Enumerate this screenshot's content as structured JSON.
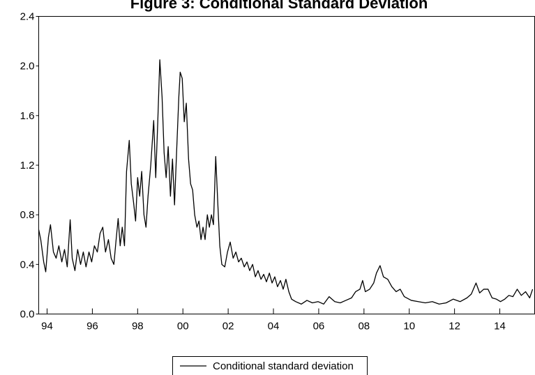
{
  "chart_data": {
    "type": "line",
    "title": "Figure 3: Conditional Standard Deviation",
    "x": [
      1993.63,
      1993.72,
      1993.85,
      1993.94,
      1994.06,
      1994.15,
      1994.28,
      1994.4,
      1994.52,
      1994.65,
      1994.77,
      1994.89,
      1995.02,
      1995.11,
      1995.23,
      1995.35,
      1995.48,
      1995.6,
      1995.72,
      1995.85,
      1995.97,
      1996.09,
      1996.22,
      1996.34,
      1996.46,
      1996.58,
      1996.71,
      1996.83,
      1996.95,
      1997.05,
      1997.14,
      1997.23,
      1997.32,
      1997.42,
      1997.51,
      1997.63,
      1997.72,
      1997.82,
      1997.91,
      1998.0,
      1998.09,
      1998.18,
      1998.28,
      1998.37,
      1998.46,
      1998.58,
      1998.71,
      1998.8,
      1998.89,
      1998.98,
      1999.08,
      1999.17,
      1999.26,
      1999.35,
      1999.45,
      1999.54,
      1999.63,
      1999.72,
      1999.82,
      1999.88,
      1999.97,
      2000.06,
      2000.15,
      2000.25,
      2000.34,
      2000.43,
      2000.52,
      2000.62,
      2000.71,
      2000.8,
      2000.89,
      2000.98,
      2001.08,
      2001.17,
      2001.26,
      2001.35,
      2001.45,
      2001.54,
      2001.63,
      2001.72,
      2001.85,
      2001.97,
      2002.09,
      2002.22,
      2002.34,
      2002.46,
      2002.58,
      2002.71,
      2002.83,
      2002.95,
      2003.08,
      2003.2,
      2003.32,
      2003.45,
      2003.57,
      2003.69,
      2003.82,
      2003.94,
      2004.06,
      2004.18,
      2004.31,
      2004.43,
      2004.55,
      2004.68,
      2004.8,
      2004.98,
      2005.23,
      2005.48,
      2005.72,
      2005.97,
      2006.22,
      2006.46,
      2006.71,
      2006.95,
      2007.2,
      2007.45,
      2007.63,
      2007.82,
      2007.94,
      2008.06,
      2008.25,
      2008.43,
      2008.55,
      2008.71,
      2008.86,
      2009.05,
      2009.23,
      2009.42,
      2009.6,
      2009.78,
      2010.09,
      2010.4,
      2010.71,
      2011.02,
      2011.32,
      2011.63,
      2011.94,
      2012.25,
      2012.55,
      2012.74,
      2012.95,
      2013.11,
      2013.29,
      2013.48,
      2013.66,
      2013.85,
      2014.03,
      2014.22,
      2014.4,
      2014.58,
      2014.77,
      2014.95,
      2015.14,
      2015.32,
      2015.45
    ],
    "series": [
      {
        "name": "Conditional standard deviation",
        "color": "#000000",
        "values": [
          0.68,
          0.6,
          0.42,
          0.34,
          0.62,
          0.72,
          0.5,
          0.45,
          0.55,
          0.42,
          0.52,
          0.38,
          0.76,
          0.45,
          0.35,
          0.52,
          0.4,
          0.5,
          0.38,
          0.5,
          0.42,
          0.55,
          0.5,
          0.65,
          0.7,
          0.5,
          0.6,
          0.45,
          0.4,
          0.6,
          0.77,
          0.55,
          0.7,
          0.55,
          1.15,
          1.4,
          1.05,
          0.9,
          0.75,
          1.1,
          0.95,
          1.15,
          0.8,
          0.7,
          0.95,
          1.2,
          1.56,
          1.1,
          1.55,
          2.05,
          1.75,
          1.3,
          1.1,
          1.35,
          0.95,
          1.25,
          0.88,
          1.3,
          1.75,
          1.95,
          1.9,
          1.55,
          1.7,
          1.25,
          1.05,
          1.0,
          0.8,
          0.7,
          0.75,
          0.6,
          0.7,
          0.6,
          0.8,
          0.7,
          0.8,
          0.72,
          1.27,
          0.9,
          0.55,
          0.4,
          0.38,
          0.5,
          0.58,
          0.45,
          0.5,
          0.42,
          0.45,
          0.38,
          0.42,
          0.35,
          0.4,
          0.3,
          0.35,
          0.28,
          0.32,
          0.26,
          0.33,
          0.25,
          0.3,
          0.22,
          0.27,
          0.2,
          0.28,
          0.18,
          0.12,
          0.1,
          0.08,
          0.11,
          0.09,
          0.1,
          0.08,
          0.14,
          0.1,
          0.09,
          0.11,
          0.13,
          0.18,
          0.2,
          0.27,
          0.18,
          0.2,
          0.25,
          0.33,
          0.39,
          0.3,
          0.28,
          0.22,
          0.18,
          0.2,
          0.14,
          0.11,
          0.1,
          0.09,
          0.1,
          0.08,
          0.09,
          0.12,
          0.1,
          0.13,
          0.16,
          0.25,
          0.17,
          0.2,
          0.2,
          0.13,
          0.12,
          0.1,
          0.12,
          0.15,
          0.14,
          0.2,
          0.15,
          0.18,
          0.13,
          0.2
        ]
      }
    ],
    "xlim": [
      1993.63,
      2015.54
    ],
    "xticks": [
      {
        "value": 1994,
        "label": "94"
      },
      {
        "value": 1996,
        "label": "96"
      },
      {
        "value": 1998,
        "label": "98"
      },
      {
        "value": 2000,
        "label": "00"
      },
      {
        "value": 2002,
        "label": "02"
      },
      {
        "value": 2004,
        "label": "04"
      },
      {
        "value": 2006,
        "label": "06"
      },
      {
        "value": 2008,
        "label": "08"
      },
      {
        "value": 2010,
        "label": "10"
      },
      {
        "value": 2012,
        "label": "12"
      },
      {
        "value": 2014,
        "label": "14"
      }
    ],
    "ylim": [
      0,
      2.4
    ],
    "yticks": [
      {
        "value": 0,
        "label": "0.0"
      },
      0.4,
      0.8,
      1.2,
      1.6,
      {
        "value": 2,
        "label": "2.0"
      },
      2.4
    ],
    "grid": false,
    "legend": "bottom"
  }
}
